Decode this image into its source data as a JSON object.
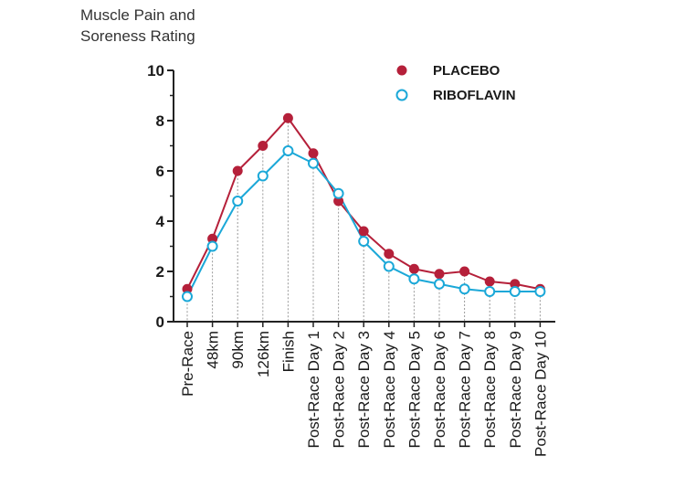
{
  "colors": {
    "placebo": "#b5203a",
    "riboflavin": "#1ba8d8",
    "axis": "#222222",
    "grid": "#9a9a9a"
  },
  "chart_data": {
    "type": "line",
    "ylabel": [
      "Muscle Pain and",
      "Soreness Rating"
    ],
    "ylim": [
      0,
      10
    ],
    "yticks": [
      "0",
      "2",
      "4",
      "6",
      "8",
      "10"
    ],
    "categories": [
      "Pre-Race",
      "48km",
      "90km",
      "126km",
      "Finish",
      "Post-Race Day 1",
      "Post-Race Day 2",
      "Post-Race Day 3",
      "Post-Race Day 4",
      "Post-Race Day 5",
      "Post-Race Day 6",
      "Post-Race Day 7",
      "Post-Race Day 8",
      "Post-Race Day 9",
      "Post-Race Day 10"
    ],
    "series": [
      {
        "name": "PLACEBO",
        "marker": "filled",
        "values": [
          1.3,
          3.3,
          6.0,
          7.0,
          8.1,
          6.7,
          4.8,
          3.6,
          2.7,
          2.1,
          1.9,
          2.0,
          1.6,
          1.5,
          1.3
        ]
      },
      {
        "name": "RIBOFLAVIN",
        "marker": "open",
        "values": [
          1.0,
          3.0,
          4.8,
          5.8,
          6.8,
          6.3,
          5.1,
          3.2,
          2.2,
          1.7,
          1.5,
          1.3,
          1.2,
          1.2,
          1.2
        ]
      }
    ],
    "vertical_guides": true,
    "legend_position": "top-right"
  }
}
